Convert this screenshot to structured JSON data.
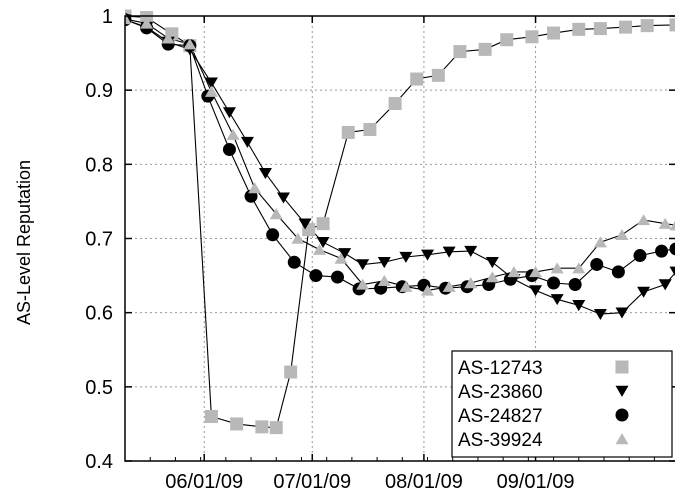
{
  "chart_data": {
    "type": "line",
    "title": "",
    "xlabel": "",
    "ylabel": "AS-Level Reputation",
    "ylim": [
      0.4,
      1.0
    ],
    "yticks": [
      "0.4",
      "0.5",
      "0.6",
      "0.7",
      "0.8",
      "0.9",
      "1"
    ],
    "xlim": [
      "2009-05-10",
      "2009-10-10"
    ],
    "xticks": [
      {
        "date": "2009-06-01",
        "label": "06/01/09"
      },
      {
        "date": "2009-07-01",
        "label": "07/01/09"
      },
      {
        "date": "2009-08-01",
        "label": "08/01/09"
      },
      {
        "date": "2009-09-01",
        "label": "09/01/09"
      }
    ],
    "grid": true,
    "legend_position": "bottom-right",
    "series": [
      {
        "name": "AS-12743",
        "marker": "square",
        "color": "#b8b8b8",
        "points": [
          [
            "2009-05-10",
            1.0
          ],
          [
            "2009-05-16",
            0.998
          ],
          [
            "2009-05-23",
            0.976
          ],
          [
            "2009-05-28",
            0.96
          ],
          [
            "2009-06-03",
            0.46
          ],
          [
            "2009-06-10",
            0.45
          ],
          [
            "2009-06-17",
            0.446
          ],
          [
            "2009-06-21",
            0.445
          ],
          [
            "2009-06-25",
            0.52
          ],
          [
            "2009-06-30",
            0.712
          ],
          [
            "2009-07-04",
            0.72
          ],
          [
            "2009-07-11",
            0.843
          ],
          [
            "2009-07-17",
            0.847
          ],
          [
            "2009-07-24",
            0.882
          ],
          [
            "2009-07-30",
            0.915
          ],
          [
            "2009-08-05",
            0.92
          ],
          [
            "2009-08-11",
            0.952
          ],
          [
            "2009-08-18",
            0.955
          ],
          [
            "2009-08-24",
            0.968
          ],
          [
            "2009-08-31",
            0.972
          ],
          [
            "2009-09-06",
            0.977
          ],
          [
            "2009-09-13",
            0.982
          ],
          [
            "2009-09-19",
            0.983
          ],
          [
            "2009-09-26",
            0.985
          ],
          [
            "2009-10-02",
            0.987
          ],
          [
            "2009-10-10",
            0.988
          ]
        ]
      },
      {
        "name": "AS-23860",
        "marker": "triangle-down",
        "color": "#000000",
        "points": [
          [
            "2009-05-10",
            0.995
          ],
          [
            "2009-05-16",
            0.985
          ],
          [
            "2009-05-22",
            0.965
          ],
          [
            "2009-05-28",
            0.955
          ],
          [
            "2009-06-03",
            0.91
          ],
          [
            "2009-06-08",
            0.87
          ],
          [
            "2009-06-13",
            0.83
          ],
          [
            "2009-06-18",
            0.788
          ],
          [
            "2009-06-23",
            0.755
          ],
          [
            "2009-06-29",
            0.72
          ],
          [
            "2009-07-04",
            0.695
          ],
          [
            "2009-07-10",
            0.68
          ],
          [
            "2009-07-15",
            0.665
          ],
          [
            "2009-07-21",
            0.668
          ],
          [
            "2009-07-27",
            0.675
          ],
          [
            "2009-08-02",
            0.678
          ],
          [
            "2009-08-08",
            0.682
          ],
          [
            "2009-08-14",
            0.683
          ],
          [
            "2009-08-20",
            0.668
          ],
          [
            "2009-08-26",
            0.645
          ],
          [
            "2009-09-01",
            0.63
          ],
          [
            "2009-09-07",
            0.618
          ],
          [
            "2009-09-13",
            0.61
          ],
          [
            "2009-09-19",
            0.598
          ],
          [
            "2009-09-25",
            0.6
          ],
          [
            "2009-10-01",
            0.628
          ],
          [
            "2009-10-07",
            0.638
          ],
          [
            "2009-10-10",
            0.655
          ]
        ]
      },
      {
        "name": "AS-24827",
        "marker": "circle",
        "color": "#000000",
        "points": [
          [
            "2009-05-10",
            0.995
          ],
          [
            "2009-05-16",
            0.984
          ],
          [
            "2009-05-22",
            0.962
          ],
          [
            "2009-05-28",
            0.96
          ],
          [
            "2009-06-02",
            0.892
          ],
          [
            "2009-06-08",
            0.82
          ],
          [
            "2009-06-14",
            0.757
          ],
          [
            "2009-06-20",
            0.705
          ],
          [
            "2009-06-26",
            0.668
          ],
          [
            "2009-07-02",
            0.65
          ],
          [
            "2009-07-08",
            0.648
          ],
          [
            "2009-07-14",
            0.632
          ],
          [
            "2009-07-20",
            0.633
          ],
          [
            "2009-07-26",
            0.635
          ],
          [
            "2009-08-01",
            0.637
          ],
          [
            "2009-08-07",
            0.633
          ],
          [
            "2009-08-13",
            0.635
          ],
          [
            "2009-08-19",
            0.638
          ],
          [
            "2009-08-25",
            0.645
          ],
          [
            "2009-08-31",
            0.65
          ],
          [
            "2009-09-06",
            0.64
          ],
          [
            "2009-09-12",
            0.638
          ],
          [
            "2009-09-18",
            0.665
          ],
          [
            "2009-09-24",
            0.655
          ],
          [
            "2009-09-30",
            0.677
          ],
          [
            "2009-10-06",
            0.683
          ],
          [
            "2009-10-10",
            0.686
          ]
        ]
      },
      {
        "name": "AS-39924",
        "marker": "triangle-up",
        "color": "#b8b8b8",
        "points": [
          [
            "2009-05-10",
            0.996
          ],
          [
            "2009-05-16",
            0.99
          ],
          [
            "2009-05-22",
            0.97
          ],
          [
            "2009-05-28",
            0.962
          ],
          [
            "2009-06-03",
            0.898
          ],
          [
            "2009-06-09",
            0.84
          ],
          [
            "2009-06-15",
            0.768
          ],
          [
            "2009-06-21",
            0.733
          ],
          [
            "2009-06-27",
            0.7
          ],
          [
            "2009-07-03",
            0.685
          ],
          [
            "2009-07-09",
            0.673
          ],
          [
            "2009-07-15",
            0.638
          ],
          [
            "2009-07-21",
            0.643
          ],
          [
            "2009-07-27",
            0.635
          ],
          [
            "2009-08-02",
            0.63
          ],
          [
            "2009-08-08",
            0.635
          ],
          [
            "2009-08-14",
            0.64
          ],
          [
            "2009-08-20",
            0.648
          ],
          [
            "2009-08-26",
            0.655
          ],
          [
            "2009-09-01",
            0.655
          ],
          [
            "2009-09-07",
            0.66
          ],
          [
            "2009-09-13",
            0.66
          ],
          [
            "2009-09-19",
            0.695
          ],
          [
            "2009-09-25",
            0.705
          ],
          [
            "2009-10-01",
            0.725
          ],
          [
            "2009-10-07",
            0.72
          ],
          [
            "2009-10-10",
            0.718
          ]
        ]
      }
    ]
  }
}
